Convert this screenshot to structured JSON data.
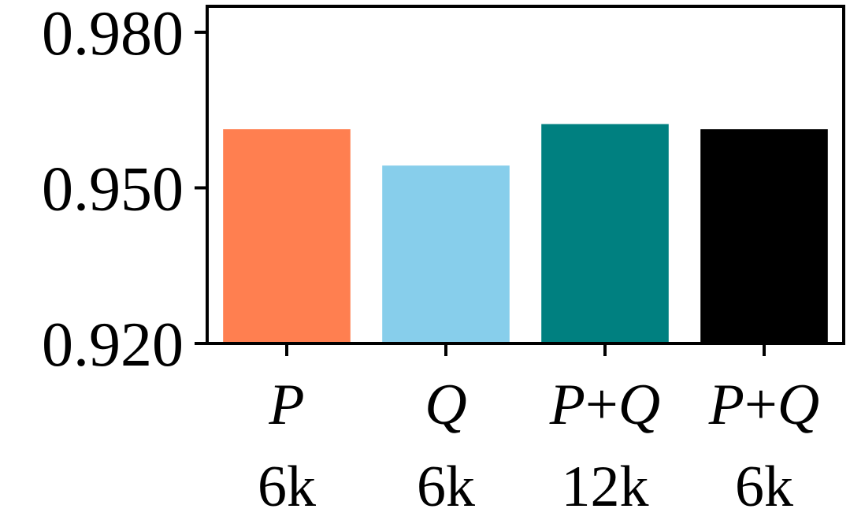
{
  "chart_data": {
    "type": "bar",
    "categories": [
      {
        "line1": "P",
        "line2": "6k"
      },
      {
        "line1": "Q",
        "line2": "6k"
      },
      {
        "line1": "P+Q",
        "line2": "12k"
      },
      {
        "line1": "P+Q",
        "line2": "6k"
      }
    ],
    "values": [
      0.9613,
      0.9543,
      0.9623,
      0.9613
    ],
    "colors": [
      "#FF7F50",
      "#87CEEB",
      "#008080",
      "#000000"
    ],
    "ylim": [
      0.92,
      0.985
    ],
    "yticks": [
      "0.920",
      "0.950",
      "0.980"
    ],
    "ytick_values": [
      0.92,
      0.95,
      0.98
    ],
    "title": "",
    "xlabel": "",
    "ylabel": "",
    "grid": false
  }
}
